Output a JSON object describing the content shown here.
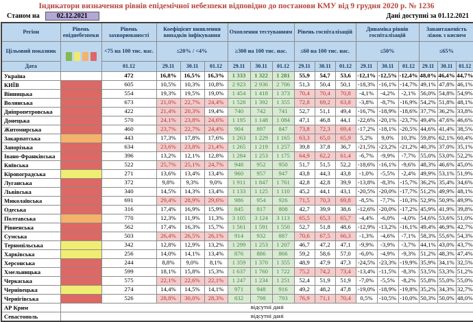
{
  "title": "Індикатори визначення рівнів епідемічної небезпеки відповідно до постанови КМУ від 9 грудня 2020 р. № 1236",
  "as_of_label": "Станом на",
  "as_of_date": "02.12.2021",
  "data_available_label": "Дані доступні за 01.12.2021",
  "no_data_label": "відсутні дані",
  "colors": {
    "title_red": "#b5433c",
    "header_bg": "#bdd7ee",
    "header_text": "#17375e",
    "date_box_purple": "#b4a7d6",
    "danger_red": "#dd6864",
    "danger_orange": "#f5b26a",
    "danger_yellow": "#efee72",
    "legend_green": "#84b954",
    "highlight_bad_bg": "#f4cccc",
    "highlight_bad_text": "#b23430",
    "highlight_ok_bg": "#d9ead3",
    "highlight_ok_text": "#3f8a3f"
  },
  "columns": {
    "region_label": "Регіон",
    "target_label": "Цільовий показник",
    "date_label": "Дата",
    "legend_squares": [
      "green",
      "yellow",
      "orange",
      "red"
    ],
    "groups": [
      {
        "title": "Рівень епіднебезпеки",
        "threshold": "",
        "dates": []
      },
      {
        "title": "Рівень захворюваності",
        "threshold": "<75 на 100 тис. нас.",
        "dates": [
          "01.12"
        ]
      },
      {
        "title": "Коефіцієнт виявлення випадків інфікування",
        "threshold": "≤20% / <4%",
        "dates": [
          "29.11",
          "30.11",
          "01.12"
        ]
      },
      {
        "title": "Охоплення тестуванням",
        "threshold": "≥300 на 100 тис. нас.",
        "dates": [
          "29.11",
          "30.11",
          "01.12"
        ]
      },
      {
        "title": "Рівень госпіталізацій",
        "threshold": "≤60 на 100 тис. нас.",
        "dates": [
          "29.11",
          "30.11",
          "01.12"
        ]
      },
      {
        "title": "Динаміка рівнів госпіталізацій",
        "threshold": "≤50%",
        "dates": [
          "29.11",
          "30.11",
          "01.12"
        ]
      },
      {
        "title": "Завантаженість ліжок з киснем",
        "threshold": "≤65%",
        "dates": [
          "29.11",
          "30.11",
          "01.12"
        ]
      }
    ]
  },
  "thresholds": {
    "detection_pct": 20,
    "hospitalization": 60,
    "testing_min": 300
  },
  "rows": [
    {
      "region": "Україна",
      "level": "",
      "bold": true,
      "incidence": "472",
      "detection": [
        "16,8%",
        "16,5%",
        "16,3%"
      ],
      "testing": [
        "1 333",
        "1 322",
        "1 281"
      ],
      "hospitalization": [
        "55,9",
        "54,7",
        "53,6"
      ],
      "hosp_dynamics": [
        "-12,1%",
        "-12,5%",
        "-12,4%"
      ],
      "bed_occupancy": [
        "48,0%",
        "46,4%",
        "44,7%"
      ]
    },
    {
      "region": "КИЇВ",
      "level": "red",
      "incidence": "605",
      "detection": [
        "10,5%",
        "10,3%",
        "10,8%"
      ],
      "testing": [
        "2 923",
        "2 936",
        "2 706"
      ],
      "hospitalization": [
        "51,3",
        "50,4",
        "50,1"
      ],
      "hosp_dynamics": [
        "-18,3%",
        "-16,1%",
        "-14,7%"
      ],
      "bed_occupancy": [
        "49,1%",
        "47,8%",
        "46,1%"
      ]
    },
    {
      "region": "Вінницька",
      "level": "red",
      "incidence": "554",
      "detection": [
        "19,3%",
        "19,5%",
        "19,0%"
      ],
      "testing": [
        "1 454",
        "1 418",
        "1 373"
      ],
      "hospitalization": [
        "70,4",
        "70,4",
        "70,8"
      ],
      "hosp_dynamics": [
        "-4,1%",
        "-4,2%",
        "-2,1%"
      ],
      "bed_occupancy": [
        "56,0%",
        "54,8%",
        "54,9%"
      ]
    },
    {
      "region": "Волинська",
      "level": "red",
      "incidence": "673",
      "detection": [
        "21,0%",
        "22,7%",
        "24,4%"
      ],
      "testing": [
        "1 528",
        "1 392",
        "1 355"
      ],
      "hospitalization": [
        "72,8",
        "69,2",
        "63,8"
      ],
      "hosp_dynamics": [
        "-3,8%",
        "-8,7%",
        "-16,9%"
      ],
      "bed_occupancy": [
        "54,2%",
        "51,8%",
        "48,1%"
      ]
    },
    {
      "region": "Дніпропетровська",
      "level": "red",
      "incidence": "422",
      "detection": [
        "21,4%",
        "20,3%",
        "19,4%"
      ],
      "testing": [
        "740",
        "742",
        "741"
      ],
      "hospitalization": [
        "52,7",
        "51,1",
        "49,4"
      ],
      "hosp_dynamics": [
        "-16,7%",
        "-18,9%",
        "-18,6%"
      ],
      "bed_occupancy": [
        "37,7%",
        "36,2%",
        "33,8%"
      ]
    },
    {
      "region": "Донецька",
      "level": "red",
      "incidence": "570",
      "detection": [
        "24,1%",
        "23,8%",
        "24,6%"
      ],
      "testing": [
        "1 195",
        "1 148",
        "1 084"
      ],
      "hospitalization": [
        "47,1",
        "46,8",
        "44,1"
      ],
      "hosp_dynamics": [
        "-22,6%",
        "-20,1%",
        "-23,7%"
      ],
      "bed_occupancy": [
        "49,4%",
        "47,6%",
        "46,6%"
      ]
    },
    {
      "region": "Житомирська",
      "level": "red",
      "incidence": "460",
      "detection": [
        "23,7%",
        "22,7%",
        "24,4%"
      ],
      "testing": [
        "904",
        "897",
        "847"
      ],
      "hospitalization": [
        "73,8",
        "72,3",
        "69,4"
      ],
      "hosp_dynamics": [
        "-17,2%",
        "-18,1%",
        "-20,5%"
      ],
      "bed_occupancy": [
        "44,6%",
        "41,4%",
        "38,5%"
      ]
    },
    {
      "region": "Закарпатська",
      "level": "orange",
      "incidence": "443",
      "detection": [
        "17,3%",
        "17,8%",
        "17,6%"
      ],
      "testing": [
        "1 263",
        "1 229",
        "1 165"
      ],
      "hospitalization": [
        "63,3",
        "65,0",
        "65,9"
      ],
      "hosp_dynamics": [
        "5,2%",
        "9,0%",
        "10,3%"
      ],
      "bed_occupancy": [
        "59,8%",
        "62,1%",
        "60,4%"
      ]
    },
    {
      "region": "Запорізька",
      "level": "red",
      "incidence": "634",
      "detection": [
        "23,6%",
        "23,8%",
        "21,4%"
      ],
      "testing": [
        "1 265",
        "1 219",
        "1 257"
      ],
      "hospitalization": [
        "39,8",
        "37,8",
        "36,7"
      ],
      "hosp_dynamics": [
        "-21,5%",
        "-23,2%",
        "-21,2%"
      ],
      "bed_occupancy": [
        "40,3%",
        "37,0%",
        "35,1%"
      ]
    },
    {
      "region": "Івано-Франківська",
      "level": "red",
      "incidence": "396",
      "detection": [
        "13,2%",
        "12,1%",
        "12,8%"
      ],
      "testing": [
        "1 284",
        "1 253",
        "1 175"
      ],
      "hospitalization": [
        "64,9",
        "62,2",
        "61,4"
      ],
      "hosp_dynamics": [
        "-6,7%",
        "-9,9%",
        "-7,7%"
      ],
      "bed_occupancy": [
        "55,0%",
        "53,0%",
        "52,2%"
      ]
    },
    {
      "region": "Київська",
      "level": "red",
      "incidence": "522",
      "detection": [
        "25,7%",
        "25,1%",
        "24,7%"
      ],
      "testing": [
        "948",
        "952",
        "950"
      ],
      "hospitalization": [
        "51,7",
        "51,5",
        "52,2"
      ],
      "hosp_dynamics": [
        "-18,6%",
        "-16,1%",
        "-9,6%"
      ],
      "bed_occupancy": [
        "48,3%",
        "46,6%",
        "45,0%"
      ]
    },
    {
      "region": "Кіровоградська",
      "level": "yellow",
      "incidence": "271",
      "detection": [
        "13,6%",
        "13,4%",
        "13,4%"
      ],
      "testing": [
        "960",
        "957",
        "947"
      ],
      "hospitalization": [
        "43,8",
        "44,3",
        "43,8"
      ],
      "hosp_dynamics": [
        "-1,0%",
        "-5,5%",
        "-2,4%"
      ],
      "bed_occupancy": [
        "49,9%",
        "53,1%",
        "51,9%"
      ]
    },
    {
      "region": "Луганська",
      "level": "red",
      "incidence": "372",
      "detection": [
        "9,8%",
        "9,3%",
        "9,0%"
      ],
      "testing": [
        "1 911",
        "1 847",
        "1 761"
      ],
      "hospitalization": [
        "42,8",
        "42,8",
        "39,9"
      ],
      "hosp_dynamics": [
        "-13,8%",
        "-8,3%",
        "-15,7%"
      ],
      "bed_occupancy": [
        "36,2%",
        "35,4%",
        "34,6%"
      ]
    },
    {
      "region": "Львівська",
      "level": "red",
      "incidence": "340",
      "detection": [
        "14,5%",
        "14,3%",
        "13,4%"
      ],
      "testing": [
        "1 133",
        "1 125",
        "1 110"
      ],
      "hospitalization": [
        "45,2",
        "44,1",
        "43,1"
      ],
      "hosp_dynamics": [
        "-20,5%",
        "-20,0%",
        "-17,7%"
      ],
      "bed_occupancy": [
        "51,2%",
        "49,9%",
        "48,1%"
      ]
    },
    {
      "region": "Миколаївська",
      "level": "red",
      "incidence": "691",
      "detection": [
        "29,4%",
        "28,9%",
        "29,6%"
      ],
      "testing": [
        "986",
        "954",
        "926"
      ],
      "hospitalization": [
        "71,5",
        "70,3",
        "69,8"
      ],
      "hosp_dynamics": [
        "-8,5%",
        "-7,7%",
        "-10,3%"
      ],
      "bed_occupancy": [
        "52,9%",
        "50,9%",
        "49,9%"
      ]
    },
    {
      "region": "Одеська",
      "level": "red",
      "incidence": "316",
      "detection": [
        "17,4%",
        "16,9%",
        "15,9%"
      ],
      "testing": [
        "845",
        "817",
        "808"
      ],
      "hospitalization": [
        "42,7",
        "39,9",
        "38,6"
      ],
      "hosp_dynamics": [
        "-12,6%",
        "-20,0%",
        "-17,2%"
      ],
      "bed_occupancy": [
        "45,9%",
        "41,9%",
        "39,8%"
      ]
    },
    {
      "region": "Полтавська",
      "level": "orange",
      "incidence": "770",
      "detection": [
        "12,3%",
        "11,9%",
        "11,3%"
      ],
      "testing": [
        "3 105",
        "3 124",
        "3 113"
      ],
      "hospitalization": [
        "65,5",
        "65,3",
        "65,7"
      ],
      "hosp_dynamics": [
        "-4,4%",
        "-6,0%",
        "-4,0%"
      ],
      "bed_occupancy": [
        "54,6%",
        "53,6%",
        "51,0%"
      ]
    },
    {
      "region": "Рівненська",
      "level": "red",
      "incidence": "562",
      "detection": [
        "17,4%",
        "16,3%",
        "15,7%"
      ],
      "testing": [
        "1 561",
        "1 591",
        "1 550"
      ],
      "hospitalization": [
        "52,7",
        "51,8",
        "48,6"
      ],
      "hosp_dynamics": [
        "-12,9%",
        "-13,2%",
        "-16,1%"
      ],
      "bed_occupancy": [
        "49,4%",
        "46,9%",
        "42,7%"
      ]
    },
    {
      "region": "Сумська",
      "level": "red",
      "incidence": "503",
      "detection": [
        "26,4%",
        "26,5%",
        "26,1%"
      ],
      "testing": [
        "914",
        "932",
        "887"
      ],
      "hospitalization": [
        "70,6",
        "67,5",
        "66,3"
      ],
      "hosp_dynamics": [
        "-1,3%",
        "-4,6%",
        "-7,1%"
      ],
      "bed_occupancy": [
        "58,3%",
        "55,6%",
        "54,3%"
      ]
    },
    {
      "region": "Тернопільська",
      "level": "yellow",
      "incidence": "342",
      "detection": [
        "12,8%",
        "12,9%",
        "13,2%"
      ],
      "testing": [
        "1 299",
        "1 253",
        "1 207"
      ],
      "hospitalization": [
        "46,7",
        "47,2",
        "47,1"
      ],
      "hosp_dynamics": [
        "-9,9%",
        "-3,9%",
        "-3,7%"
      ],
      "bed_occupancy": [
        "44,1%",
        "43,0%",
        "43,7%"
      ]
    },
    {
      "region": "Харківська",
      "level": "yellow",
      "incidence": "256",
      "detection": [
        "14,0%",
        "14,1%",
        "13,4%"
      ],
      "testing": [
        "876",
        "886",
        "866"
      ],
      "hospitalization": [
        "59,2",
        "58,6",
        "57,0"
      ],
      "hosp_dynamics": [
        "-6,0%",
        "-4,9%",
        "-9,3%"
      ],
      "bed_occupancy": [
        "51,2%",
        "48,3%",
        "47,4%"
      ]
    },
    {
      "region": "Херсонська",
      "level": "red",
      "incidence": "244",
      "detection": [
        "8,8%",
        "9,0%",
        "8,1%"
      ],
      "testing": [
        "1 359",
        "1 370",
        "1 355"
      ],
      "hospitalization": [
        "48,9",
        "47,9",
        "47,3"
      ],
      "hosp_dynamics": [
        "-24,5%",
        "-23,3%",
        "-19,9%"
      ],
      "bed_occupancy": [
        "35,9%",
        "34,1%",
        "32,5%"
      ]
    },
    {
      "region": "Хмельницька",
      "level": "red",
      "incidence": "599",
      "detection": [
        "18,1%",
        "15,8%",
        "15,3%"
      ],
      "testing": [
        "1 637",
        "1 760",
        "1 722"
      ],
      "hospitalization": [
        "75,2",
        "74,2",
        "73,4"
      ],
      "hosp_dynamics": [
        "-13,4%",
        "-11,5%",
        "-8,3%"
      ],
      "bed_occupancy": [
        "53,5%",
        "53,3%",
        "51,2%"
      ]
    },
    {
      "region": "Черкаська",
      "level": "red",
      "incidence": "575",
      "detection": [
        "22,1%",
        "22,6%",
        "22,1%"
      ],
      "testing": [
        "1 247",
        "1 234",
        "1 251"
      ],
      "hospitalization": [
        "52,4",
        "51,9",
        "51,9"
      ],
      "hosp_dynamics": [
        "-7,0%",
        "-5,5%",
        "-8,2%"
      ],
      "bed_occupancy": [
        "55,8%",
        "55,0%",
        "55,0%"
      ]
    },
    {
      "region": "Чернівецька",
      "level": "yellow",
      "incidence": "274",
      "detection": [
        "14,4%",
        "14,5%",
        "14,1%"
      ],
      "testing": [
        "971",
        "948",
        "916"
      ],
      "hospitalization": [
        "49,2",
        "48,2",
        "47,8"
      ],
      "hosp_dynamics": [
        "-19,0%",
        "-18,9%",
        "-19,8%"
      ],
      "bed_occupancy": [
        "35,2%",
        "34,3%",
        "32,7%"
      ]
    },
    {
      "region": "Чернігівська",
      "level": "red",
      "incidence": "526",
      "detection": [
        "28,8%",
        "30,0%",
        "28,3%"
      ],
      "testing": [
        "832",
        "798",
        "793"
      ],
      "hospitalization": [
        "76,9",
        "71,1",
        "70,4"
      ],
      "hosp_dynamics": [
        "0,5%",
        "-10,5%",
        "-10,0%"
      ],
      "bed_occupancy": [
        "50,3%",
        "50,0%",
        "48,0%"
      ]
    }
  ],
  "no_data_rows": [
    {
      "region": "АР Крим"
    },
    {
      "region": "Севастополь"
    }
  ]
}
